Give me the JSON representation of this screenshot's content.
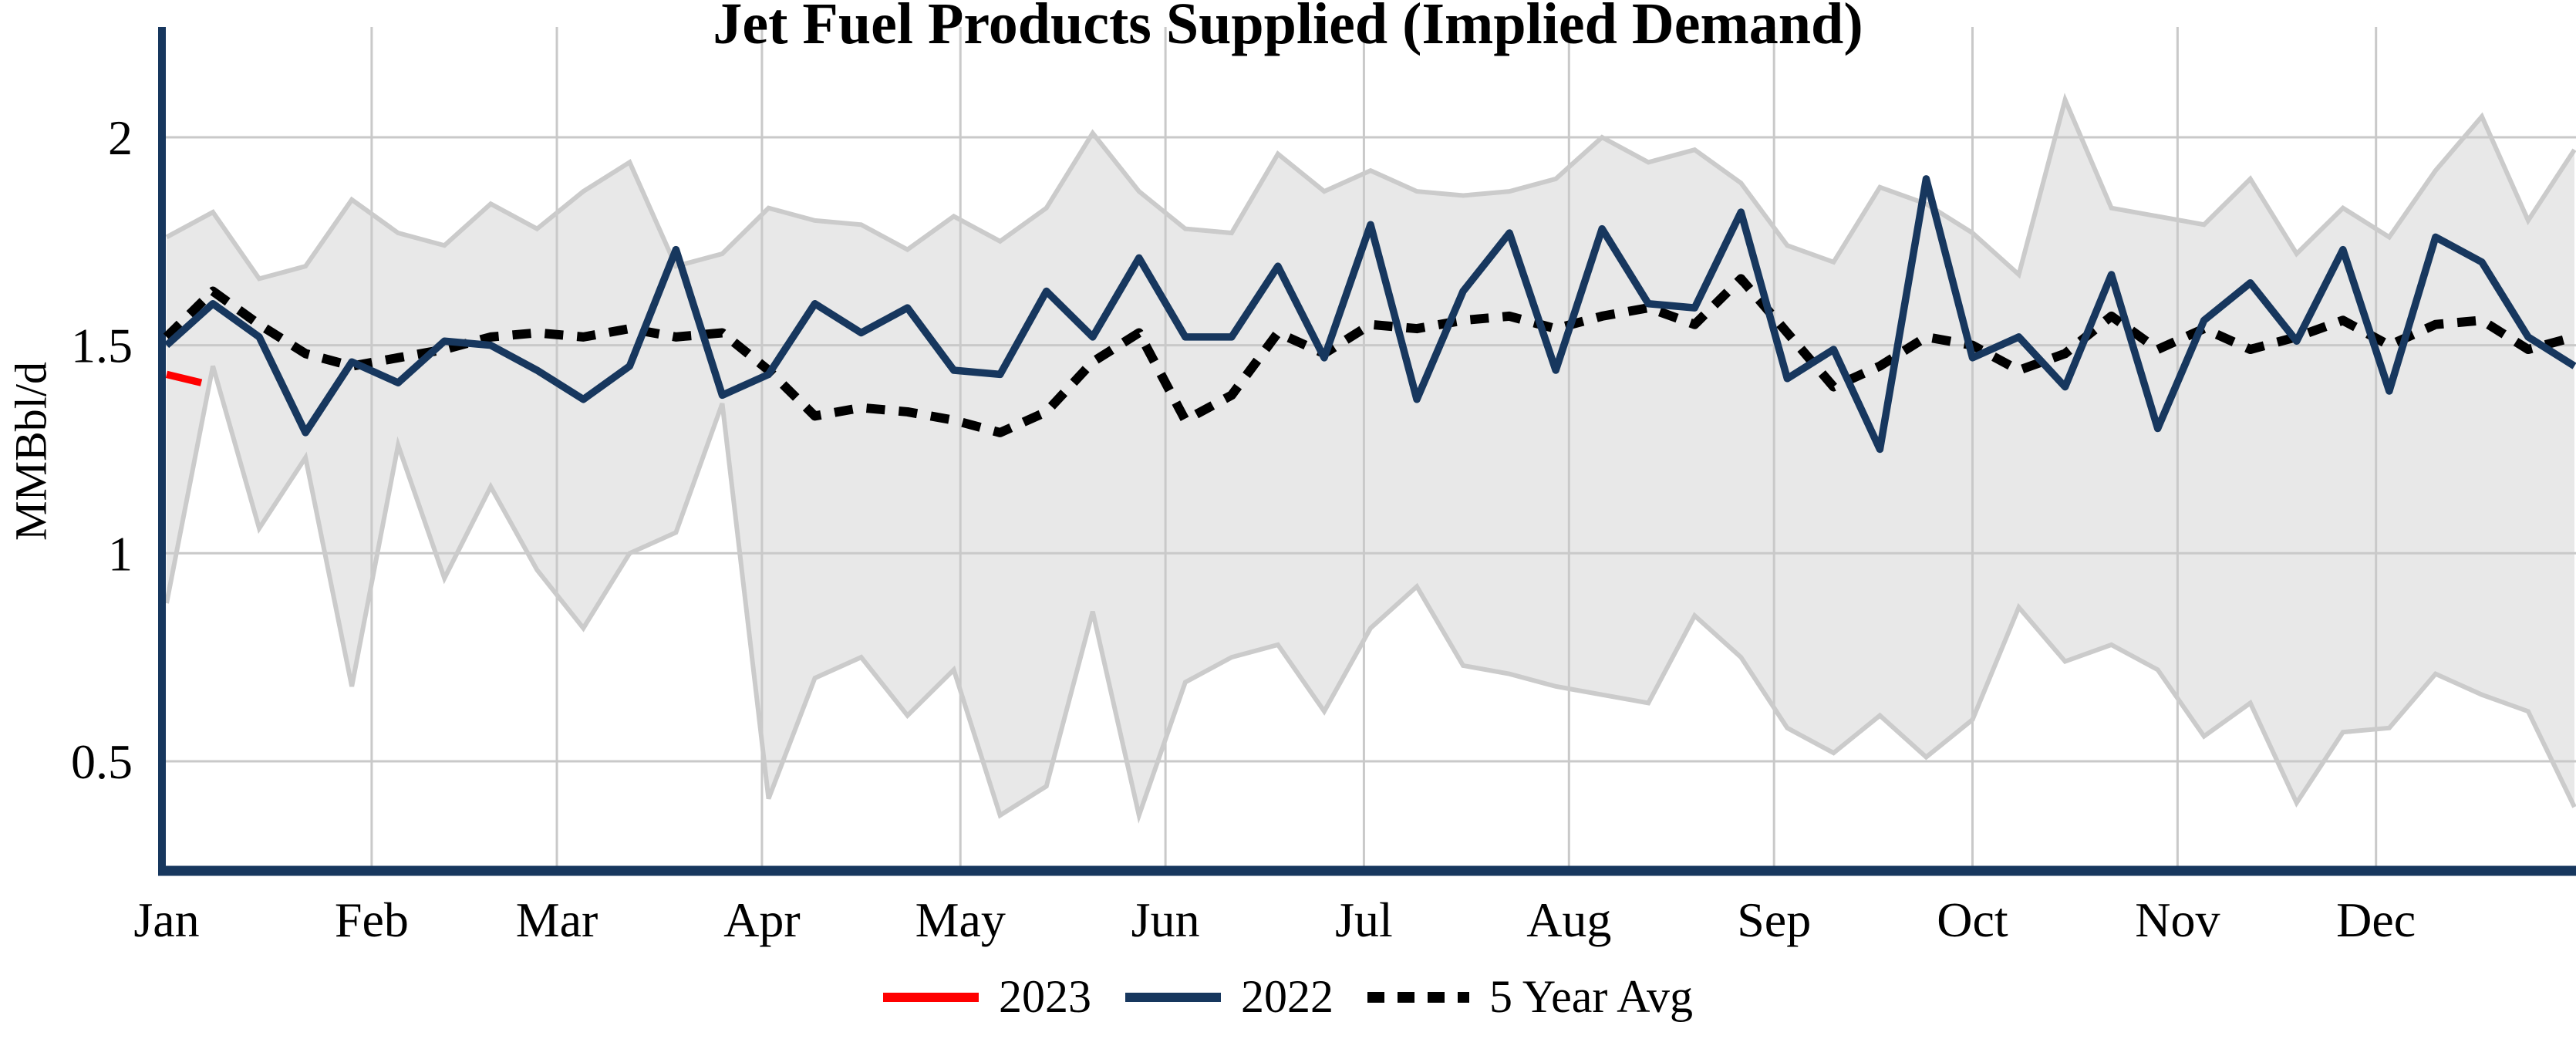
{
  "title": "Jet Fuel Products Supplied (Implied Demand)",
  "y_axis": {
    "label": "MMBbl/d",
    "tick_labels": [
      "0.5",
      "1",
      "1.5",
      "2"
    ],
    "tick_values": [
      0.5,
      1.0,
      1.5,
      2.0
    ]
  },
  "x_axis": {
    "month_labels": [
      "Jan",
      "Feb",
      "Mar",
      "Apr",
      "May",
      "Jun",
      "Jul",
      "Aug",
      "Sep",
      "Oct",
      "Nov",
      "Dec"
    ]
  },
  "legend": [
    {
      "label": "2023",
      "color": "#ff0000",
      "style": "solid"
    },
    {
      "label": "2022",
      "color": "#17375e",
      "style": "solid"
    },
    {
      "label": "5 Year Avg",
      "color": "#000000",
      "style": "dotted"
    }
  ],
  "colors": {
    "line_2022": "#17375e",
    "line_2023": "#ff0000",
    "line_5yr_avg": "#000000",
    "band_fill": "#e8e8e8",
    "band_edge": "#cbcbcb",
    "gridline": "#c9c9c9",
    "axis": "#17375e",
    "background": "#ffffff"
  },
  "chart_data": {
    "type": "line",
    "title": "Jet Fuel Products Supplied (Implied Demand)",
    "xlabel": "",
    "ylabel": "MMBbl/d",
    "ylim": [
      0.24,
      2.26
    ],
    "yticks": [
      0.5,
      1.0,
      1.5,
      2.0
    ],
    "x_unit": "weekly points, Jan through Dec",
    "n_points": 53,
    "grid": "on",
    "legend_position": "bottom-center",
    "band": {
      "name": "5-year min-max range (shaded)",
      "upper": [
        1.76,
        1.82,
        1.66,
        1.69,
        1.85,
        1.77,
        1.74,
        1.84,
        1.78,
        1.87,
        1.94,
        1.69,
        1.72,
        1.83,
        1.8,
        1.79,
        1.73,
        1.81,
        1.75,
        1.83,
        2.01,
        1.87,
        1.78,
        1.77,
        1.96,
        1.87,
        1.92,
        1.87,
        1.86,
        1.87,
        1.9,
        2.0,
        1.94,
        1.97,
        1.89,
        1.74,
        1.7,
        1.88,
        1.84,
        1.77,
        1.67,
        2.09,
        1.83,
        1.81,
        1.79,
        1.9,
        1.72,
        1.83,
        1.76,
        1.92,
        2.05,
        1.8,
        1.97
      ],
      "lower": [
        0.88,
        1.45,
        1.06,
        1.23,
        0.68,
        1.26,
        0.94,
        1.16,
        0.96,
        0.82,
        1.0,
        1.05,
        1.36,
        0.41,
        0.7,
        0.75,
        0.61,
        0.72,
        0.37,
        0.44,
        0.86,
        0.37,
        0.69,
        0.75,
        0.78,
        0.62,
        0.82,
        0.92,
        0.73,
        0.71,
        0.68,
        0.66,
        0.64,
        0.85,
        0.75,
        0.58,
        0.52,
        0.61,
        0.51,
        0.6,
        0.87,
        0.74,
        0.78,
        0.72,
        0.56,
        0.64,
        0.4,
        0.57,
        0.58,
        0.71,
        0.66,
        0.62,
        0.39
      ]
    },
    "series": [
      {
        "name": "2023",
        "color": "#ff0000",
        "style": "solid",
        "x_weeks": [
          0,
          0.75
        ],
        "values": [
          1.43,
          1.41
        ]
      },
      {
        "name": "2022",
        "color": "#17375e",
        "style": "solid",
        "values": [
          1.5,
          1.6,
          1.52,
          1.29,
          1.46,
          1.41,
          1.51,
          1.5,
          1.44,
          1.37,
          1.45,
          1.73,
          1.38,
          1.43,
          1.6,
          1.53,
          1.59,
          1.44,
          1.43,
          1.63,
          1.52,
          1.71,
          1.52,
          1.52,
          1.69,
          1.47,
          1.79,
          1.37,
          1.63,
          1.77,
          1.44,
          1.78,
          1.6,
          1.59,
          1.82,
          1.42,
          1.49,
          1.25,
          1.9,
          1.47,
          1.52,
          1.4,
          1.67,
          1.3,
          1.56,
          1.65,
          1.51,
          1.73,
          1.39,
          1.76,
          1.7,
          1.52,
          1.45
        ]
      },
      {
        "name": "5 Year Avg",
        "color": "#000000",
        "style": "dotted",
        "values": [
          1.52,
          1.63,
          1.55,
          1.48,
          1.45,
          1.47,
          1.49,
          1.52,
          1.53,
          1.52,
          1.54,
          1.52,
          1.53,
          1.44,
          1.33,
          1.35,
          1.34,
          1.32,
          1.29,
          1.34,
          1.46,
          1.53,
          1.32,
          1.38,
          1.53,
          1.48,
          1.55,
          1.54,
          1.56,
          1.57,
          1.54,
          1.57,
          1.59,
          1.55,
          1.66,
          1.53,
          1.4,
          1.45,
          1.52,
          1.5,
          1.44,
          1.48,
          1.57,
          1.49,
          1.54,
          1.49,
          1.52,
          1.56,
          1.5,
          1.55,
          1.56,
          1.49,
          1.52
        ]
      }
    ]
  }
}
